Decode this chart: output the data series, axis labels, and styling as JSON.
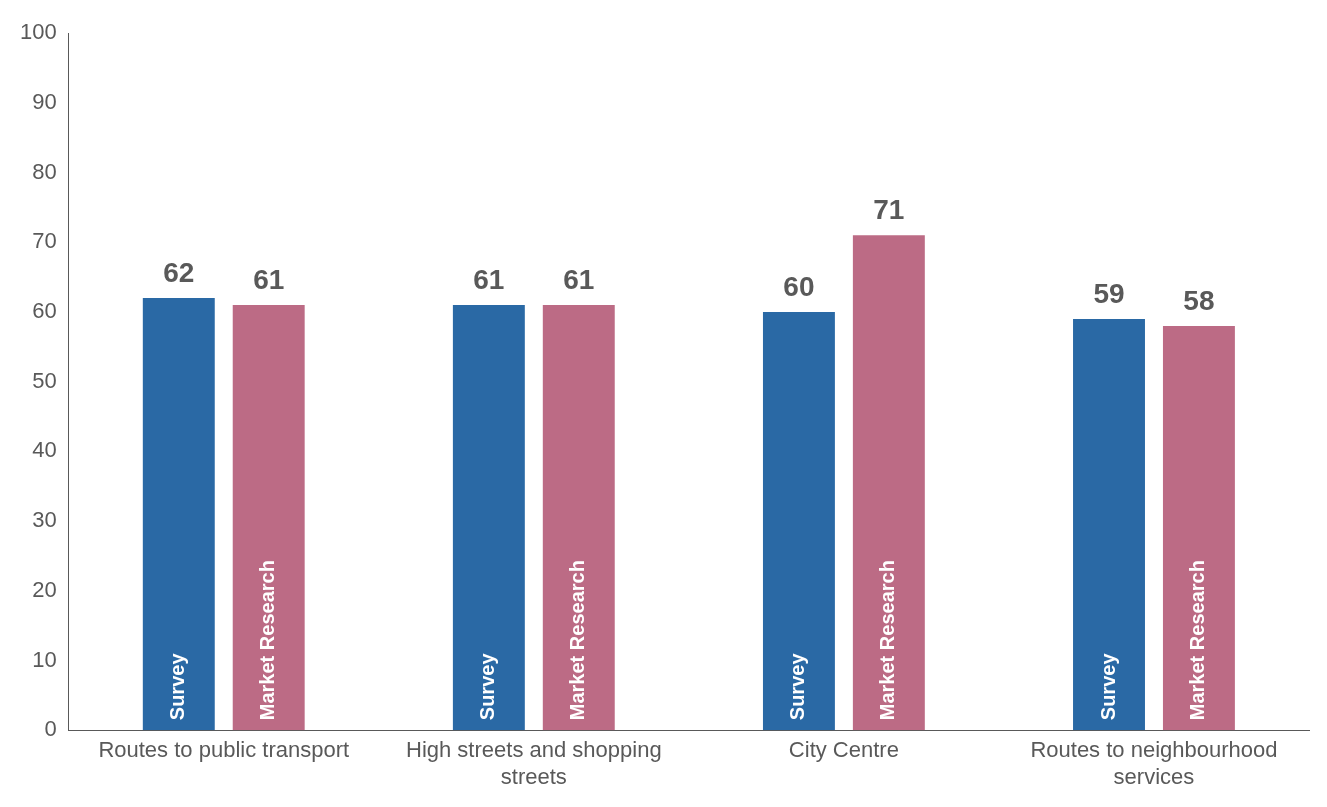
{
  "chart_data": {
    "type": "bar",
    "categories": [
      "Routes to public transport",
      "High streets and shopping streets",
      "City Centre",
      "Routes to neighbourhood services"
    ],
    "series": [
      {
        "name": "Survey",
        "color": "#2a69a5",
        "values": [
          62,
          61,
          60,
          59
        ]
      },
      {
        "name": "Market Research",
        "color": "#bc6b85",
        "values": [
          61,
          61,
          71,
          58
        ]
      }
    ],
    "ylim": [
      0,
      100
    ],
    "yticks": [
      0,
      10,
      20,
      30,
      40,
      50,
      60,
      70,
      80,
      90,
      100
    ],
    "data_labels": true,
    "grid": false,
    "legend": false
  }
}
